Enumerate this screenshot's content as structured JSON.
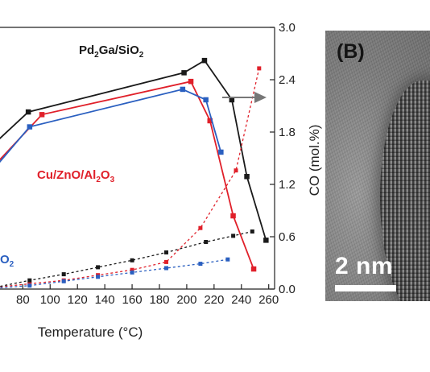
{
  "chart_data": {
    "type": "line",
    "xlabel": "Temperature (°C)",
    "y2label": "CO (mol.%)",
    "x_ticks": [
      "80",
      "100",
      "120",
      "140",
      "160",
      "180",
      "200",
      "220",
      "240",
      "260"
    ],
    "y2_ticks": [
      "0.0",
      "0.6",
      "1.2",
      "1.8",
      "2.4",
      "3.0"
    ],
    "x_tick_values": [
      80,
      100,
      120,
      140,
      160,
      180,
      200,
      220,
      240,
      260
    ],
    "y2_tick_values": [
      0,
      0.6,
      1.2,
      1.8,
      2.4,
      3.0
    ],
    "xlim": [
      63.3,
      264.3
    ],
    "y2lim": [
      0,
      3.0
    ],
    "series": [
      {
        "label_main": "Pd",
        "label_sub1": "2",
        "label_mid": "Ga/SiO",
        "label_sub2": "2",
        "color": "#1a1a1a",
        "style": "solid",
        "axis": "left-scaled-to-right",
        "x": [
          60,
          84,
          198,
          213,
          233,
          244,
          258
        ],
        "y": [
          1.68,
          2.03,
          2.48,
          2.62,
          2.17,
          1.29,
          0.56
        ]
      },
      {
        "label_main": "Cu/ZnO/Al",
        "label_sub1": "2",
        "label_mid": "O",
        "label_sub2": "3",
        "color": "#e0202a",
        "style": "solid",
        "axis": "left-scaled-to-right",
        "x": [
          60,
          94,
          203,
          217,
          234,
          249
        ],
        "y": [
          1.43,
          2.0,
          2.38,
          1.93,
          0.84,
          0.23
        ]
      },
      {
        "color": "#2a5fc0",
        "style": "solid",
        "axis": "left-scaled-to-right",
        "x": [
          60,
          85,
          197,
          214,
          225
        ],
        "y": [
          1.4,
          1.86,
          2.29,
          2.17,
          1.57
        ]
      },
      {
        "color": "#e0202a",
        "style": "dotted",
        "axis": "right",
        "x": [
          60,
          85,
          110,
          135,
          160,
          185,
          210,
          236,
          253
        ],
        "y": [
          0.02,
          0.06,
          0.1,
          0.16,
          0.22,
          0.31,
          0.7,
          1.36,
          2.53
        ]
      },
      {
        "color": "#1a1a1a",
        "style": "dotted",
        "axis": "right",
        "x": [
          60,
          85,
          110,
          135,
          160,
          185,
          214,
          234,
          248
        ],
        "y": [
          0.02,
          0.1,
          0.17,
          0.25,
          0.33,
          0.42,
          0.54,
          0.61,
          0.66
        ]
      },
      {
        "color": "#2a5fc0",
        "style": "dotted",
        "axis": "right",
        "x": [
          60,
          85,
          110,
          135,
          160,
          185,
          210,
          230
        ],
        "y": [
          0.01,
          0.04,
          0.09,
          0.14,
          0.19,
          0.24,
          0.29,
          0.34
        ]
      }
    ],
    "partial_label": {
      "text": "O",
      "sub": "2",
      "color": "#2a5fc0"
    },
    "grid": false
  },
  "tem_panel": {
    "label": "(B)",
    "scale_text": "2 nm"
  }
}
